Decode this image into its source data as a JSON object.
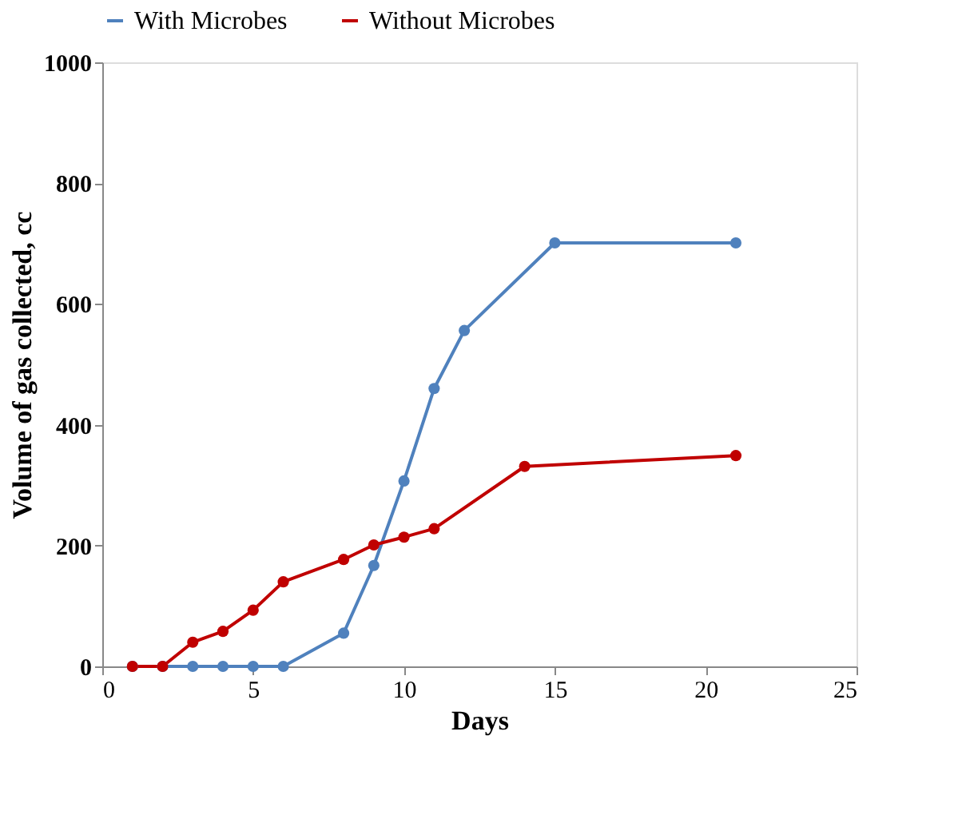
{
  "chart_data": {
    "type": "line",
    "xlabel": "Days",
    "ylabel": "Volume of gas collected, cc",
    "xlim": [
      0,
      25
    ],
    "xticks": [
      0,
      5,
      10,
      15,
      20,
      25
    ],
    "ylim": [
      0,
      1000
    ],
    "yticks": [
      0,
      200,
      400,
      600,
      800,
      1000
    ],
    "grid": false,
    "legend": "top",
    "marker": "circle",
    "line_style": "solid",
    "series": [
      {
        "name": "With Microbes",
        "color": "#4f81bd",
        "x": [
          1,
          2,
          3,
          4,
          5,
          6,
          8,
          9,
          10,
          11,
          12,
          15,
          21
        ],
        "values": [
          0,
          0,
          0,
          0,
          0,
          0,
          55,
          167,
          307,
          460,
          556,
          701,
          701
        ]
      },
      {
        "name": "Without Microbes",
        "color": "#c00000",
        "x": [
          1,
          2,
          3,
          4,
          5,
          6,
          8,
          9,
          10,
          11,
          14,
          21
        ],
        "values": [
          0,
          0,
          40,
          58,
          93,
          140,
          177,
          201,
          214,
          228,
          331,
          349
        ]
      }
    ]
  }
}
